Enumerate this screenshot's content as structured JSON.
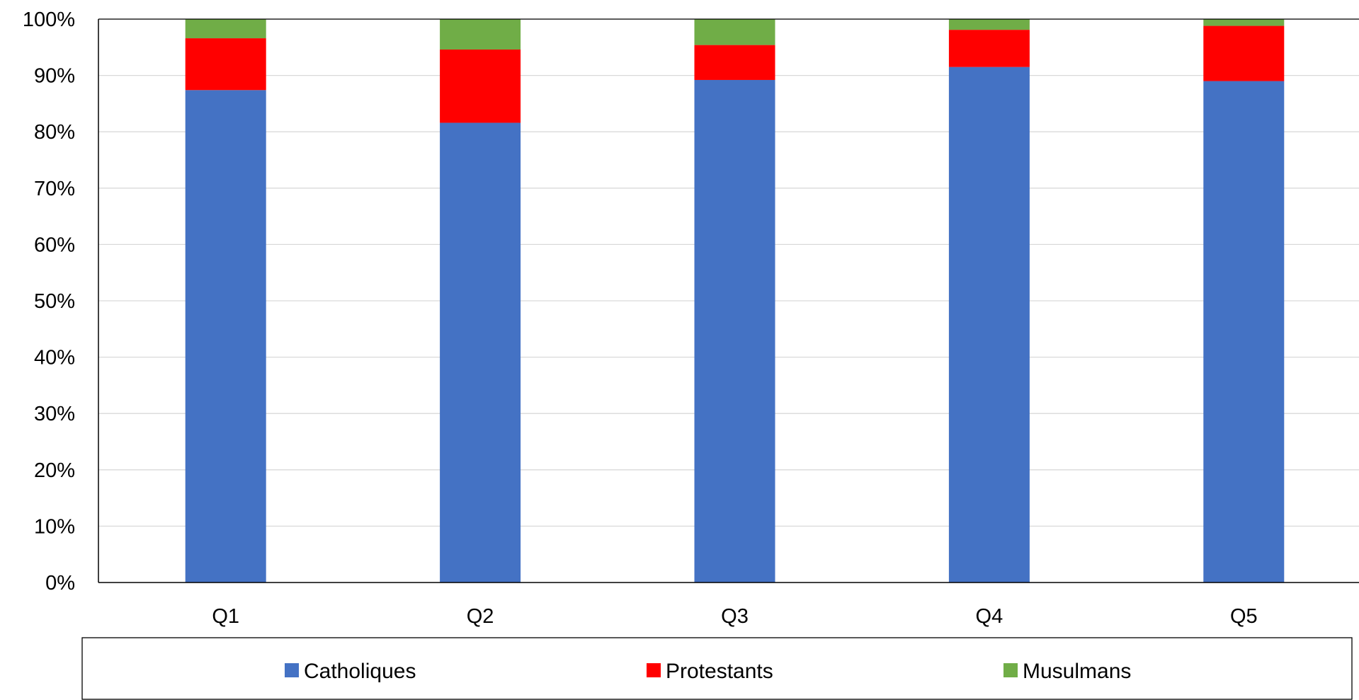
{
  "chart_data": {
    "type": "bar",
    "stacked": true,
    "percent_stacked": true,
    "categories": [
      "Q1",
      "Q2",
      "Q3",
      "Q4",
      "Q5"
    ],
    "series": [
      {
        "name": "Catholiques",
        "color": "#4472C4",
        "values": [
          87.4,
          81.6,
          89.2,
          91.5,
          89.0
        ]
      },
      {
        "name": "Protestants",
        "color": "#FF0000",
        "values": [
          9.2,
          13.0,
          6.2,
          6.6,
          9.8
        ]
      },
      {
        "name": "Musulmans",
        "color": "#70AD47",
        "values": [
          3.4,
          5.4,
          4.6,
          1.9,
          1.2
        ]
      }
    ],
    "ylim": [
      0,
      100
    ],
    "yticks": [
      "0%",
      "10%",
      "20%",
      "30%",
      "40%",
      "50%",
      "60%",
      "70%",
      "80%",
      "90%",
      "100%"
    ],
    "grid": true,
    "legend_position": "bottom",
    "title": "",
    "xlabel": "",
    "ylabel": ""
  }
}
